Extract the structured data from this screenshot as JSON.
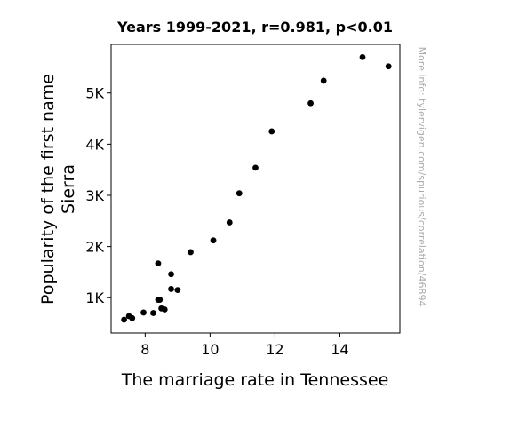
{
  "chart_data": {
    "type": "scatter",
    "title": "Years 1999-2021, r=0.981, p<0.01",
    "xlabel": "The marriage rate in Tennessee",
    "ylabel": "Popularity of the first name Sierra",
    "watermark": "More info: tylervigen.com/spurious/correlation/46894",
    "xlim": [
      6.95,
      15.85
    ],
    "ylim": [
      310,
      5950
    ],
    "xticks": [
      8,
      10,
      12,
      14
    ],
    "xtick_labels": [
      "8",
      "10",
      "12",
      "14"
    ],
    "yticks": [
      1000,
      2000,
      3000,
      4000,
      5000
    ],
    "ytick_labels": [
      "1K",
      "2K",
      "3K",
      "4K",
      "5K"
    ],
    "point_color": "#000000",
    "grid": false,
    "points": [
      {
        "x": 14.7,
        "y": 5700
      },
      {
        "x": 15.5,
        "y": 5520
      },
      {
        "x": 13.5,
        "y": 5240
      },
      {
        "x": 13.1,
        "y": 4800
      },
      {
        "x": 11.9,
        "y": 4250
      },
      {
        "x": 11.4,
        "y": 3540
      },
      {
        "x": 10.9,
        "y": 3040
      },
      {
        "x": 10.6,
        "y": 2470
      },
      {
        "x": 10.1,
        "y": 2120
      },
      {
        "x": 9.4,
        "y": 1890
      },
      {
        "x": 8.4,
        "y": 1670
      },
      {
        "x": 8.8,
        "y": 1460
      },
      {
        "x": 8.8,
        "y": 1170
      },
      {
        "x": 9.0,
        "y": 1150
      },
      {
        "x": 8.4,
        "y": 960
      },
      {
        "x": 8.45,
        "y": 960
      },
      {
        "x": 8.5,
        "y": 790
      },
      {
        "x": 8.6,
        "y": 770
      },
      {
        "x": 7.95,
        "y": 710
      },
      {
        "x": 8.25,
        "y": 700
      },
      {
        "x": 7.5,
        "y": 640
      },
      {
        "x": 7.6,
        "y": 600
      },
      {
        "x": 7.35,
        "y": 570
      }
    ]
  }
}
